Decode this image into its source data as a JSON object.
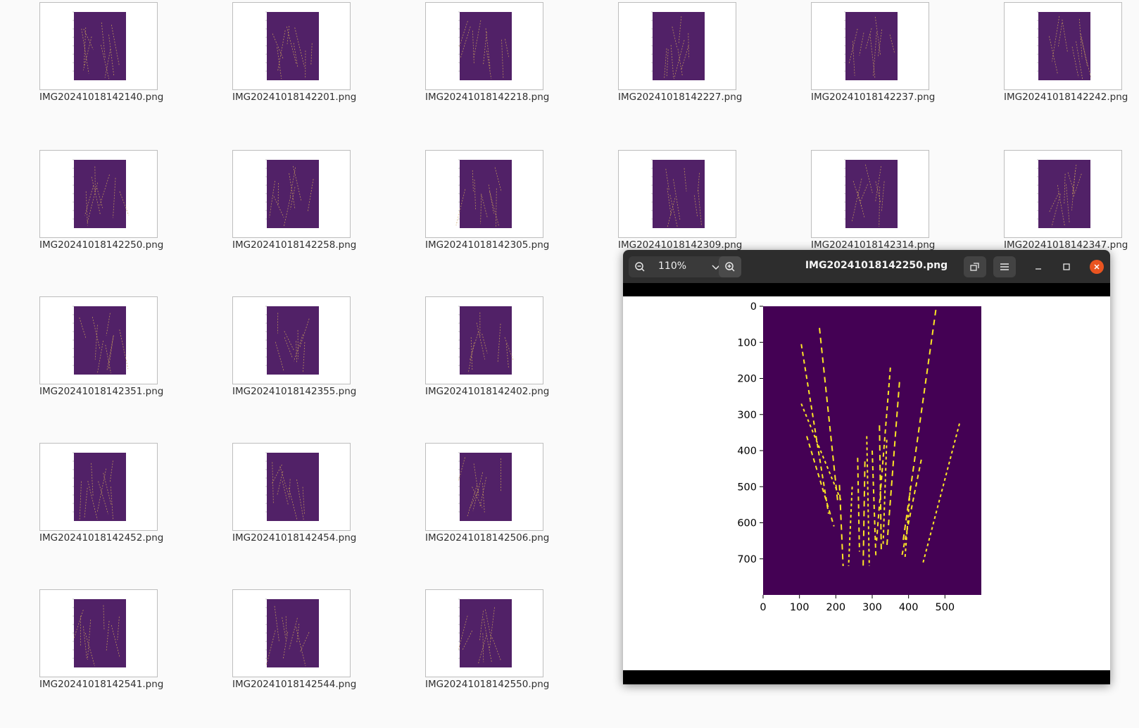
{
  "files": [
    "IMG20241018142140.png",
    "IMG20241018142201.png",
    "IMG20241018142218.png",
    "IMG20241018142227.png",
    "IMG20241018142237.png",
    "IMG20241018142242.png",
    "IMG20241018142250.png",
    "IMG20241018142258.png",
    "IMG20241018142305.png",
    "IMG20241018142309.png",
    "IMG20241018142314.png",
    "IMG20241018142347.png",
    "IMG20241018142351.png",
    "IMG20241018142355.png",
    "IMG20241018142402.png",
    "",
    "",
    "",
    "IMG20241018142452.png",
    "IMG20241018142454.png",
    "IMG20241018142506.png",
    "",
    "",
    "",
    "IMG20241018142541.png",
    "IMG20241018142544.png",
    "IMG20241018142550.png",
    "",
    "",
    ""
  ],
  "viewer": {
    "title": "IMG20241018142250.png",
    "zoom": "110%",
    "icons": {
      "zoom_out": "zoom-out-icon",
      "zoom_menu": "chevron-down-icon",
      "zoom_in": "zoom-in-icon",
      "rotate": "rotate-icon",
      "menu": "hamburger-menu-icon",
      "minimize": "minimize-icon",
      "maximize": "maximize-icon",
      "close": "close-icon"
    },
    "colors": {
      "plot_bg": "#440154",
      "line": "#fde725",
      "close": "#e95420",
      "headerbar": "#2d2d2d"
    }
  },
  "chart_data": {
    "type": "heatmap",
    "x_ticks": [
      "0",
      "100",
      "200",
      "300",
      "400",
      "500"
    ],
    "y_ticks": [
      "0",
      "100",
      "200",
      "300",
      "400",
      "500",
      "600",
      "700"
    ],
    "xlim": [
      0,
      600
    ],
    "ylim": [
      800,
      0
    ],
    "series": [
      {
        "segments": [
          [
            105,
            105,
            180,
            575
          ]
        ]
      },
      {
        "segments": [
          [
            155,
            60,
            205,
            540
          ]
        ]
      },
      {
        "segments": [
          [
            105,
            270,
            215,
            540
          ]
        ]
      },
      {
        "segments": [
          [
            120,
            360,
            195,
            610
          ]
        ]
      },
      {
        "segments": [
          [
            210,
            495,
            220,
            720
          ]
        ]
      },
      {
        "segments": [
          [
            245,
            500,
            235,
            720
          ]
        ]
      },
      {
        "segments": [
          [
            260,
            420,
            265,
            680
          ]
        ]
      },
      {
        "segments": [
          [
            280,
            430,
            275,
            730
          ]
        ]
      },
      {
        "segments": [
          [
            285,
            360,
            292,
            720
          ]
        ]
      },
      {
        "segments": [
          [
            300,
            400,
            310,
            690
          ]
        ]
      },
      {
        "segments": [
          [
            320,
            330,
            325,
            680
          ]
        ]
      },
      {
        "segments": [
          [
            340,
            370,
            330,
            660
          ]
        ]
      },
      {
        "segments": [
          [
            350,
            170,
            312,
            650
          ]
        ]
      },
      {
        "segments": [
          [
            375,
            210,
            340,
            670
          ]
        ]
      },
      {
        "segments": [
          [
            405,
            500,
            390,
            700
          ]
        ]
      },
      {
        "segments": [
          [
            435,
            425,
            382,
            690
          ]
        ]
      },
      {
        "segments": [
          [
            475,
            10,
            385,
            650
          ]
        ]
      },
      {
        "segments": [
          [
            540,
            325,
            440,
            710
          ]
        ]
      }
    ]
  }
}
